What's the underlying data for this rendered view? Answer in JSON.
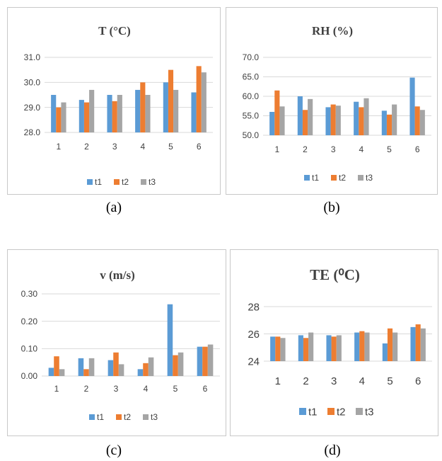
{
  "colors": {
    "t1": "#5b9bd5",
    "t2": "#ed7d31",
    "t3": "#a5a5a5",
    "grid": "#d9d9d9",
    "text": "#404040"
  },
  "captions": [
    "(a)",
    "(b)",
    "(c)",
    "(d)"
  ],
  "chart_data": [
    {
      "type": "bar",
      "title": "T (°C)",
      "categories": [
        "1",
        "2",
        "3",
        "4",
        "5",
        "6"
      ],
      "series": [
        {
          "name": "t1",
          "values": [
            29.5,
            29.3,
            29.5,
            29.7,
            30.0,
            29.6
          ]
        },
        {
          "name": "t2",
          "values": [
            29.0,
            29.2,
            29.25,
            30.0,
            30.5,
            30.65
          ]
        },
        {
          "name": "t3",
          "values": [
            29.2,
            29.7,
            29.5,
            29.5,
            29.7,
            30.4
          ]
        }
      ],
      "yticks": [
        "28.0",
        "29.0",
        "30.0",
        "31.0"
      ],
      "ylim": [
        28,
        31
      ],
      "grid": true,
      "legend": "bottom"
    },
    {
      "type": "bar",
      "title": "RH (%)",
      "categories": [
        "1",
        "2",
        "3",
        "4",
        "5",
        "6"
      ],
      "series": [
        {
          "name": "t1",
          "values": [
            56.0,
            60.0,
            57.2,
            58.6,
            56.3,
            64.8
          ]
        },
        {
          "name": "t2",
          "values": [
            61.5,
            56.5,
            57.9,
            57.2,
            55.3,
            57.4
          ]
        },
        {
          "name": "t3",
          "values": [
            57.4,
            59.3,
            57.6,
            59.5,
            57.9,
            56.5
          ]
        }
      ],
      "yticks": [
        "50.0",
        "55.0",
        "60.0",
        "65.0",
        "70.0"
      ],
      "ylim": [
        50,
        70
      ],
      "grid": true,
      "legend": "bottom"
    },
    {
      "type": "bar",
      "title": "v (m/s)",
      "categories": [
        "1",
        "2",
        "3",
        "4",
        "5",
        "6"
      ],
      "series": [
        {
          "name": "t1",
          "values": [
            0.03,
            0.065,
            0.058,
            0.025,
            0.262,
            0.107
          ]
        },
        {
          "name": "t2",
          "values": [
            0.072,
            0.025,
            0.086,
            0.047,
            0.076,
            0.107
          ]
        },
        {
          "name": "t3",
          "values": [
            0.025,
            0.065,
            0.043,
            0.068,
            0.086,
            0.115
          ]
        }
      ],
      "yticks": [
        "0.00",
        "0.10",
        "0.20",
        "0.30"
      ],
      "ylim": [
        0,
        0.3
      ],
      "grid": true,
      "legend": "bottom"
    },
    {
      "type": "bar",
      "title": "TE (⁰C)",
      "categories": [
        "1",
        "2",
        "3",
        "4",
        "5",
        "6"
      ],
      "series": [
        {
          "name": "t1",
          "values": [
            25.8,
            25.9,
            25.9,
            26.1,
            25.3,
            26.5
          ]
        },
        {
          "name": "t2",
          "values": [
            25.8,
            25.7,
            25.8,
            26.2,
            26.4,
            26.7
          ]
        },
        {
          "name": "t3",
          "values": [
            25.7,
            26.1,
            25.9,
            26.1,
            26.1,
            26.4
          ]
        }
      ],
      "yticks": [
        "24",
        "26",
        "28"
      ],
      "ylim": [
        24,
        28
      ],
      "grid": true,
      "legend": "bottom"
    }
  ]
}
